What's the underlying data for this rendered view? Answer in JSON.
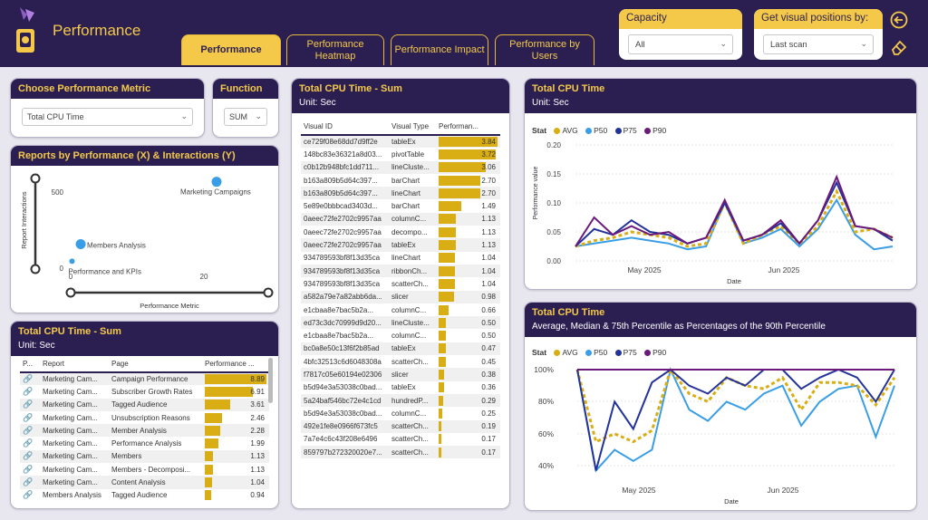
{
  "header": {
    "title": "Performance"
  },
  "tabs": [
    {
      "label": "Performance"
    },
    {
      "label": "Performance Heatmap"
    },
    {
      "label": "Performance Impact"
    },
    {
      "label": "Performance by Users"
    }
  ],
  "capacity": {
    "label": "Capacity",
    "value": "All"
  },
  "visual_pos": {
    "label": "Get visual positions by:",
    "value": "Last scan"
  },
  "metric": {
    "title": "Choose Performance Metric",
    "value": "Total CPU Time"
  },
  "function": {
    "title": "Function",
    "value": "SUM"
  },
  "scatter": {
    "title": "Reports by Performance (X) & Interactions (Y)",
    "ylabel": "Report Interactions",
    "xlabel": "Performance Metric",
    "yticks": [
      "500",
      "0"
    ],
    "xticks": [
      "0",
      "20"
    ],
    "points": [
      {
        "label": "Marketing Campaigns",
        "x": 21.9,
        "y": 560
      },
      {
        "label": "Members Analysis",
        "x": 1.5,
        "y": 160
      },
      {
        "label": "Performance and KPIs",
        "x": 0.2,
        "y": 50
      }
    ]
  },
  "report_table": {
    "title": "Total CPU Time - Sum",
    "unit": "Unit: Sec",
    "headers": [
      "P...",
      "Report",
      "Page",
      "Performance ..."
    ],
    "max": 8.89,
    "rows": [
      {
        "report": "Marketing Cam...",
        "page": "Campaign Performance",
        "value": "8.89"
      },
      {
        "report": "Marketing Cam...",
        "page": "Subscriber Growth Rates",
        "value": "6.91"
      },
      {
        "report": "Marketing Cam...",
        "page": "Tagged Audience",
        "value": "3.61"
      },
      {
        "report": "Marketing Cam...",
        "page": "Unsubscription Reasons",
        "value": "2.46"
      },
      {
        "report": "Marketing Cam...",
        "page": "Member Analysis",
        "value": "2.28"
      },
      {
        "report": "Marketing Cam...",
        "page": "Performance Analysis",
        "value": "1.99"
      },
      {
        "report": "Marketing Cam...",
        "page": "Members",
        "value": "1.13"
      },
      {
        "report": "Marketing Cam...",
        "page": "Members - Decomposi...",
        "value": "1.13"
      },
      {
        "report": "Marketing Cam...",
        "page": "Content Analysis",
        "value": "1.04"
      },
      {
        "report": "Members Analysis",
        "page": "Tagged Audience",
        "value": "0.94"
      }
    ]
  },
  "visual_table": {
    "title": "Total CPU Time - Sum",
    "unit": "Unit: Sec",
    "headers": [
      "Visual ID",
      "Visual Type",
      "Performan..."
    ],
    "max": 3.84,
    "rows": [
      {
        "id": "ce729f08e68dd7d9ff2e",
        "type": "tableEx",
        "value": "3.84"
      },
      {
        "id": "148bc83e36321a8d03...",
        "type": "pivotTable",
        "value": "3.72"
      },
      {
        "id": "c0b12b948bfc1dd711...",
        "type": "lineCluste...",
        "value": "3.06"
      },
      {
        "id": "b163a809b5d64c397...",
        "type": "barChart",
        "value": "2.70"
      },
      {
        "id": "b163a809b5d64c397...",
        "type": "lineChart",
        "value": "2.70"
      },
      {
        "id": "5e89e0bbbcad3403d...",
        "type": "barChart",
        "value": "1.49"
      },
      {
        "id": "0aeec72fe2702c9957aa",
        "type": "columnC...",
        "value": "1.13"
      },
      {
        "id": "0aeec72fe2702c9957aa",
        "type": "decompo...",
        "value": "1.13"
      },
      {
        "id": "0aeec72fe2702c9957aa",
        "type": "tableEx",
        "value": "1.13"
      },
      {
        "id": "934789593bf8f13d35ca",
        "type": "lineChart",
        "value": "1.04"
      },
      {
        "id": "934789593bf8f13d35ca",
        "type": "ribbonCh...",
        "value": "1.04"
      },
      {
        "id": "934789593bf8f13d35ca",
        "type": "scatterCh...",
        "value": "1.04"
      },
      {
        "id": "a582a79e7a82abb6da...",
        "type": "slicer",
        "value": "0.98"
      },
      {
        "id": "e1cbaa8e7bac5b2a...",
        "type": "columnC...",
        "value": "0.66"
      },
      {
        "id": "ed73c3dc70999d9d20...",
        "type": "lineCluste...",
        "value": "0.50"
      },
      {
        "id": "e1cbaa8e7bac5b2a...",
        "type": "columnC...",
        "value": "0.50"
      },
      {
        "id": "bc0a8e50c13f6f2b85ad",
        "type": "tableEx",
        "value": "0.47"
      },
      {
        "id": "4bfc32513c6d6048308a",
        "type": "scatterCh...",
        "value": "0.45"
      },
      {
        "id": "f7817c05e60194e02306",
        "type": "slicer",
        "value": "0.38"
      },
      {
        "id": "b5d94e3a53038c0bad...",
        "type": "tableEx",
        "value": "0.36"
      },
      {
        "id": "5a24baf546bc72e4c1cd",
        "type": "hundredP...",
        "value": "0.29"
      },
      {
        "id": "b5d94e3a53038c0bad...",
        "type": "columnC...",
        "value": "0.25"
      },
      {
        "id": "492e1fe8e0966f673fc5",
        "type": "scatterCh...",
        "value": "0.19"
      },
      {
        "id": "7a7e4c6c43f208e6496",
        "type": "scatterCh...",
        "value": "0.17"
      },
      {
        "id": "859797b272320020e7...",
        "type": "scatterCh...",
        "value": "0.17"
      }
    ]
  },
  "line1": {
    "title": "Total CPU Time",
    "unit": "Unit: Sec",
    "legend_title": "Stat",
    "yticks": [
      "0.20",
      "0.15",
      "0.10",
      "0.05",
      "0.00"
    ],
    "ylabel": "Performance value",
    "xlabel": "Date",
    "xticks": [
      "May 2025",
      "Jun 2025"
    ]
  },
  "line2": {
    "title": "Total CPU Time",
    "subtitle": "Average, Median & 75th Percentile as Percentages of the 90th Percentile",
    "legend_title": "Stat",
    "yticks": [
      "100%",
      "80%",
      "60%",
      "40%"
    ],
    "xlabel": "Date",
    "xticks": [
      "May 2025",
      "Jun 2025"
    ]
  },
  "series_colors": {
    "AVG": "#d9ae14",
    "P50": "#3a9ee6",
    "P75": "#24339a",
    "P90": "#6b1a7a"
  },
  "chart_data": [
    {
      "type": "line",
      "title": "Total CPU Time",
      "ylabel": "Performance value",
      "xlabel": "Date",
      "ylim": [
        0,
        0.2
      ],
      "x": [
        0,
        1,
        2,
        3,
        4,
        5,
        6,
        7,
        8,
        9,
        10,
        11,
        12,
        13,
        14,
        15,
        16,
        17
      ],
      "series": [
        {
          "name": "AVG",
          "values": [
            0.025,
            0.035,
            0.04,
            0.05,
            0.045,
            0.04,
            0.025,
            0.03,
            0.1,
            0.03,
            0.045,
            0.06,
            0.03,
            0.06,
            0.12,
            0.05,
            0.055,
            0.04
          ]
        },
        {
          "name": "P50",
          "values": [
            0.025,
            0.03,
            0.035,
            0.04,
            0.035,
            0.03,
            0.02,
            0.025,
            0.1,
            0.03,
            0.04,
            0.055,
            0.025,
            0.055,
            0.105,
            0.045,
            0.02,
            0.025
          ]
        },
        {
          "name": "P75",
          "values": [
            0.025,
            0.055,
            0.045,
            0.07,
            0.05,
            0.045,
            0.03,
            0.04,
            0.1,
            0.035,
            0.045,
            0.065,
            0.03,
            0.07,
            0.135,
            0.06,
            0.055,
            0.035
          ]
        },
        {
          "name": "P90",
          "values": [
            0.025,
            0.075,
            0.045,
            0.06,
            0.045,
            0.05,
            0.03,
            0.04,
            0.105,
            0.035,
            0.045,
            0.07,
            0.03,
            0.07,
            0.145,
            0.06,
            0.055,
            0.04
          ]
        }
      ]
    },
    {
      "type": "line",
      "title": "Total CPU Time",
      "xlabel": "Date",
      "ylim": [
        35,
        100
      ],
      "x": [
        0,
        1,
        2,
        3,
        4,
        5,
        6,
        7,
        8,
        9,
        10,
        11,
        12,
        13,
        14,
        15,
        16,
        17
      ],
      "series": [
        {
          "name": "AVG",
          "values": [
            100,
            55,
            60,
            55,
            62,
            100,
            85,
            80,
            95,
            90,
            88,
            95,
            75,
            92,
            92,
            90,
            78,
            95
          ]
        },
        {
          "name": "P50",
          "values": [
            100,
            37,
            50,
            43,
            50,
            100,
            75,
            68,
            80,
            75,
            85,
            90,
            65,
            80,
            88,
            90,
            58,
            90
          ]
        },
        {
          "name": "P75",
          "values": [
            100,
            37,
            80,
            63,
            92,
            100,
            90,
            85,
            95,
            90,
            100,
            100,
            88,
            95,
            100,
            95,
            80,
            100
          ]
        },
        {
          "name": "P90",
          "values": [
            100,
            100,
            100,
            100,
            100,
            100,
            100,
            100,
            100,
            100,
            100,
            100,
            100,
            100,
            100,
            100,
            100,
            100
          ]
        }
      ]
    }
  ]
}
